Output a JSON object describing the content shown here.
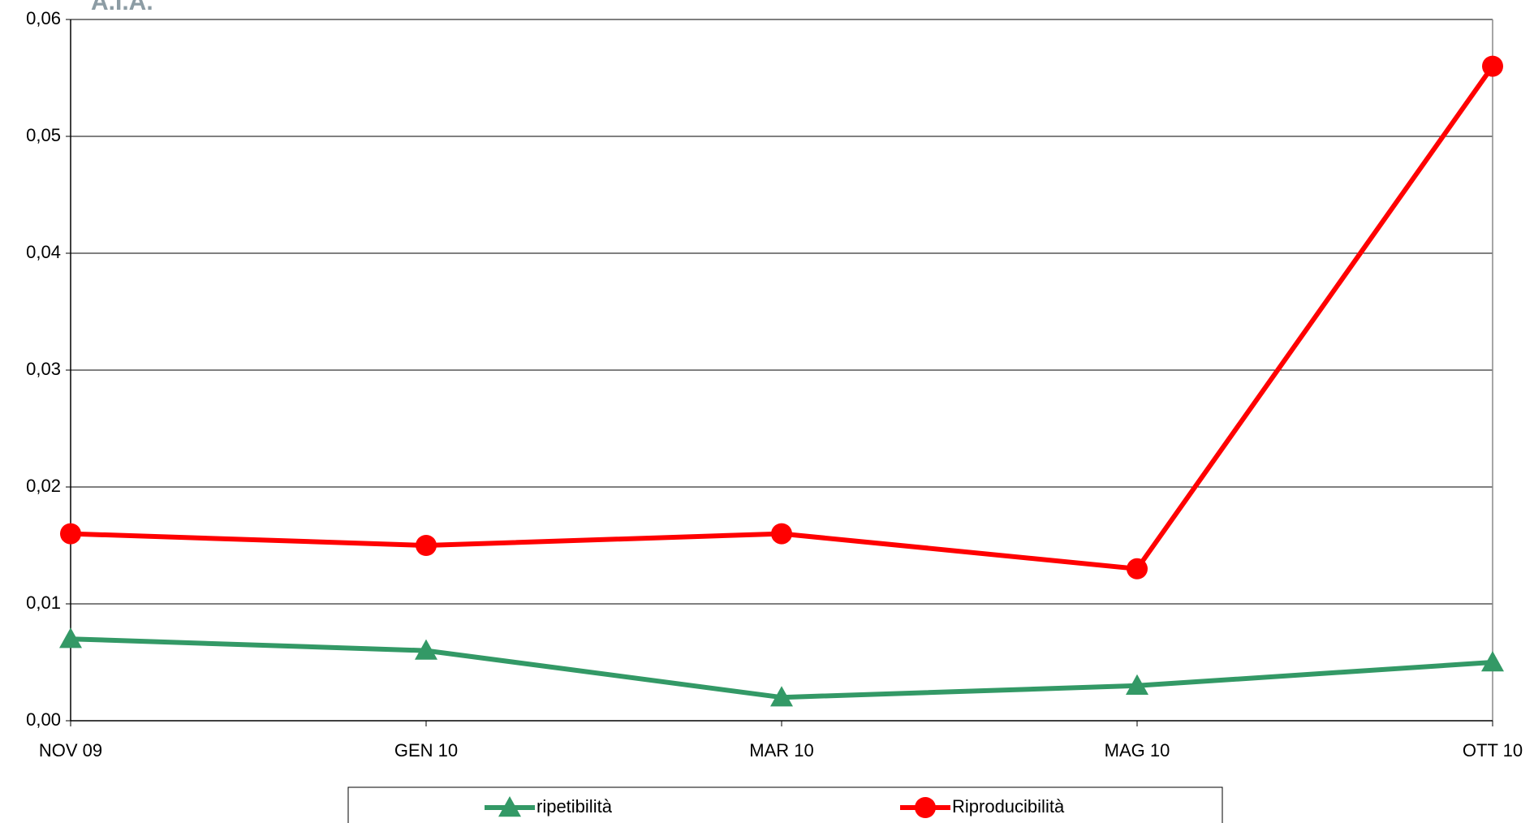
{
  "logo": "A.I.A.",
  "chart_data": {
    "type": "line",
    "categories": [
      "NOV 09",
      "GEN 10",
      "MAR 10",
      "MAG 10",
      "OTT 10"
    ],
    "series": [
      {
        "name": "ripetibilità",
        "color": "#339966",
        "marker": "triangle",
        "values": [
          0.007,
          0.006,
          0.002,
          0.003,
          0.005
        ]
      },
      {
        "name": "Riproducibilità",
        "color": "#ff0000",
        "marker": "circle",
        "values": [
          0.016,
          0.015,
          0.016,
          0.013,
          0.056
        ]
      }
    ],
    "ylim": [
      0,
      0.06
    ],
    "yticks": [
      {
        "value": 0,
        "label": "0,00"
      },
      {
        "value": 0.01,
        "label": "0,01"
      },
      {
        "value": 0.02,
        "label": "0,02"
      },
      {
        "value": 0.03,
        "label": "0,03"
      },
      {
        "value": 0.04,
        "label": "0,04"
      },
      {
        "value": 0.05,
        "label": "0,05"
      },
      {
        "value": 0.06,
        "label": "0,06"
      }
    ],
    "grid": true,
    "legend": "bottom"
  }
}
